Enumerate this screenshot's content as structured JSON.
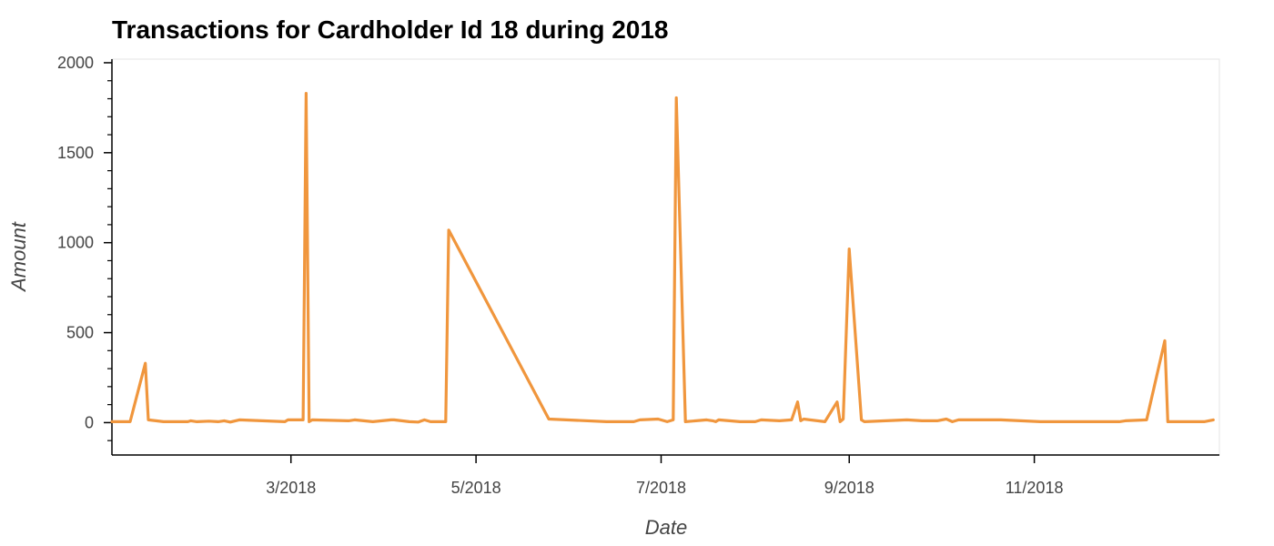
{
  "chart_data": {
    "type": "line",
    "title": "Transactions for Cardholder Id 18 during 2018",
    "xlabel": "Date",
    "ylabel": "Amount",
    "x_ticks": [
      "3/2018",
      "5/2018",
      "7/2018",
      "9/2018",
      "11/2018"
    ],
    "x_tick_dates": [
      "2018-03-01",
      "2018-05-01",
      "2018-07-01",
      "2018-09-01",
      "2018-11-01"
    ],
    "y_ticks": [
      "0",
      "500",
      "1000",
      "1500",
      "2000"
    ],
    "y_tick_values": [
      0,
      500,
      1000,
      1500,
      2000
    ],
    "xlim": [
      "2018-01-01",
      "2018-12-31"
    ],
    "ylim": [
      -180,
      2020
    ],
    "grid": false,
    "legend": "none",
    "line_color": "#f0963d",
    "series": [
      {
        "x": [
          "2018-01-01",
          "2018-01-07",
          "2018-01-12",
          "2018-01-13",
          "2018-01-18",
          "2018-01-23",
          "2018-01-26",
          "2018-01-27",
          "2018-01-29",
          "2018-02-02",
          "2018-02-05",
          "2018-02-07",
          "2018-02-09",
          "2018-02-12",
          "2018-02-27",
          "2018-02-28",
          "2018-03-05",
          "2018-03-06",
          "2018-03-07",
          "2018-03-08",
          "2018-03-20",
          "2018-03-22",
          "2018-03-25",
          "2018-03-28",
          "2018-04-03",
          "2018-04-04",
          "2018-04-09",
          "2018-04-12",
          "2018-04-14",
          "2018-04-16",
          "2018-04-21",
          "2018-04-22",
          "2018-05-25",
          "2018-06-13",
          "2018-06-22",
          "2018-06-24",
          "2018-06-30",
          "2018-07-03",
          "2018-07-05",
          "2018-07-06",
          "2018-07-09",
          "2018-07-16",
          "2018-07-18",
          "2018-07-19",
          "2018-07-20",
          "2018-07-27",
          "2018-07-30",
          "2018-08-01",
          "2018-08-03",
          "2018-08-09",
          "2018-08-13",
          "2018-08-15",
          "2018-08-16",
          "2018-08-17",
          "2018-08-24",
          "2018-08-28",
          "2018-08-29",
          "2018-08-30",
          "2018-09-01",
          "2018-09-05",
          "2018-09-06",
          "2018-09-20",
          "2018-09-25",
          "2018-09-30",
          "2018-10-03",
          "2018-10-05",
          "2018-10-07",
          "2018-10-08",
          "2018-10-21",
          "2018-11-03",
          "2018-11-13",
          "2018-11-28",
          "2018-11-29",
          "2018-12-01",
          "2018-12-08",
          "2018-12-14",
          "2018-12-15",
          "2018-12-27",
          "2018-12-30"
        ],
        "y": [
          5,
          5,
          330,
          15,
          5,
          5,
          5,
          10,
          5,
          8,
          5,
          10,
          3,
          15,
          5,
          15,
          15,
          1830,
          5,
          15,
          10,
          15,
          10,
          5,
          15,
          15,
          5,
          3,
          15,
          5,
          5,
          1070,
          20,
          5,
          5,
          15,
          20,
          5,
          15,
          1805,
          5,
          15,
          10,
          5,
          15,
          5,
          5,
          5,
          15,
          10,
          15,
          115,
          10,
          20,
          5,
          115,
          5,
          20,
          965,
          15,
          5,
          15,
          10,
          10,
          20,
          5,
          15,
          15,
          15,
          5,
          5,
          5,
          5,
          10,
          15,
          455,
          5,
          5,
          15
        ]
      }
    ]
  }
}
